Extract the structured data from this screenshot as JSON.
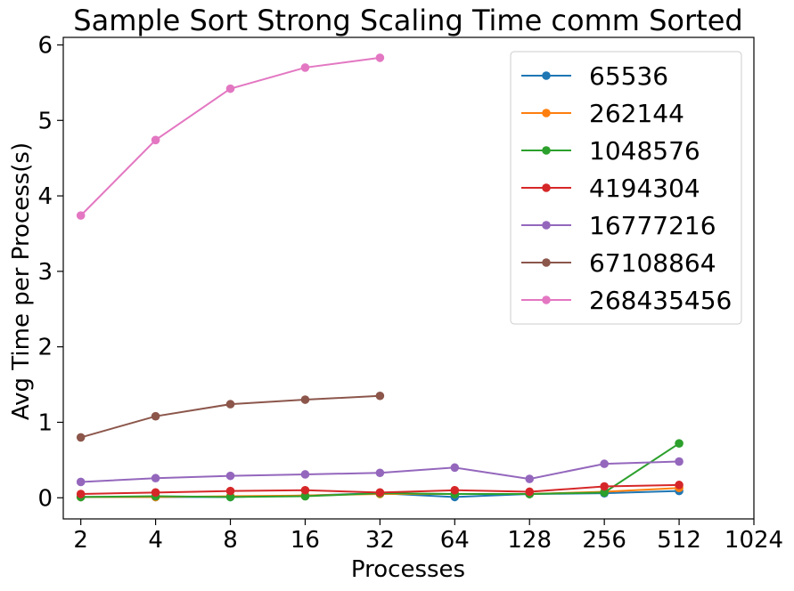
{
  "chart_data": {
    "type": "line",
    "title": "Sample Sort Strong Scaling Time comm Sorted",
    "xlabel": "Processes",
    "ylabel": "Avg Time per Process(s)",
    "x_scale": "log2",
    "xlim": [
      1.7,
      1024
    ],
    "ylim": [
      -0.28,
      6.1
    ],
    "xticks": [
      2,
      4,
      8,
      16,
      32,
      64,
      128,
      256,
      512,
      1024
    ],
    "xtick_labels": [
      "2",
      "4",
      "8",
      "16",
      "32",
      "64",
      "128",
      "256",
      "512",
      "1024"
    ],
    "yticks": [
      0,
      1,
      2,
      3,
      4,
      5,
      6
    ],
    "ytick_labels": [
      "0",
      "1",
      "2",
      "3",
      "4",
      "5",
      "6"
    ],
    "grid": false,
    "legend_position": "top-right",
    "marker": "circle",
    "series": [
      {
        "name": "65536",
        "color": "#1f77b4",
        "x": [
          2,
          4,
          8,
          16,
          32,
          64,
          128,
          256,
          512
        ],
        "y": [
          0.01,
          0.01,
          0.01,
          0.03,
          0.06,
          0.01,
          0.05,
          0.06,
          0.09
        ]
      },
      {
        "name": "262144",
        "color": "#ff7f0e",
        "x": [
          2,
          4,
          8,
          16,
          32,
          64,
          128,
          256,
          512
        ],
        "y": [
          0.01,
          0.01,
          0.02,
          0.03,
          0.05,
          0.05,
          0.05,
          0.08,
          0.13
        ]
      },
      {
        "name": "1048576",
        "color": "#2ca02c",
        "x": [
          2,
          4,
          8,
          16,
          32,
          64,
          128,
          256,
          512
        ],
        "y": [
          0.01,
          0.02,
          0.01,
          0.02,
          0.06,
          0.05,
          0.05,
          0.07,
          0.72
        ]
      },
      {
        "name": "4194304",
        "color": "#d62728",
        "x": [
          2,
          4,
          8,
          16,
          32,
          64,
          128,
          256,
          512
        ],
        "y": [
          0.05,
          0.07,
          0.09,
          0.1,
          0.07,
          0.1,
          0.08,
          0.15,
          0.17
        ]
      },
      {
        "name": "16777216",
        "color": "#9467bd",
        "x": [
          2,
          4,
          8,
          16,
          32,
          64,
          128,
          256,
          512
        ],
        "y": [
          0.21,
          0.26,
          0.29,
          0.31,
          0.33,
          0.4,
          0.25,
          0.45,
          0.48
        ]
      },
      {
        "name": "67108864",
        "color": "#8c564b",
        "x": [
          2,
          4,
          8,
          16,
          32
        ],
        "y": [
          0.8,
          1.08,
          1.24,
          1.3,
          1.35
        ]
      },
      {
        "name": "268435456",
        "color": "#e377c2",
        "x": [
          2,
          4,
          8,
          16,
          32
        ],
        "y": [
          3.74,
          4.74,
          5.42,
          5.7,
          5.83
        ]
      }
    ]
  }
}
